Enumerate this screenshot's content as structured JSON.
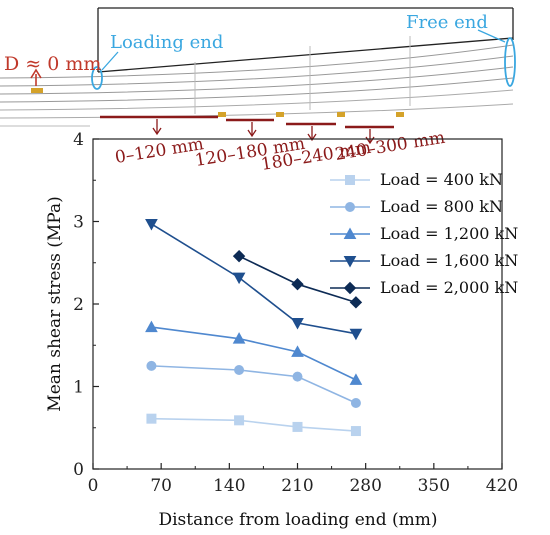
{
  "diagram": {
    "loading_end_label": "Loading end",
    "free_end_label": "Free end",
    "d_label": "D ≈ 0 mm",
    "segments": [
      "0–120 mm",
      "120–180 mm",
      "180–240 mm",
      "240–300 mm"
    ]
  },
  "chart_data": {
    "type": "line",
    "title": "",
    "xlabel": "Distance from loading end (mm)",
    "ylabel": "Mean shear stress (MPa)",
    "xlim": [
      0,
      420
    ],
    "ylim": [
      0,
      4
    ],
    "xticks": [
      "0",
      "70",
      "140",
      "210",
      "280",
      "350",
      "420"
    ],
    "yticks": [
      "0",
      "1",
      "2",
      "3",
      "4"
    ],
    "grid": false,
    "legend_position": "right",
    "series": [
      {
        "name": "Load = 400 kN",
        "marker": "square",
        "color": "#b9d2ee",
        "x": [
          60,
          150,
          210,
          270
        ],
        "y": [
          0.61,
          0.59,
          0.51,
          0.46
        ]
      },
      {
        "name": "Load = 800 kN",
        "marker": "circle",
        "color": "#8fb5e3",
        "x": [
          60,
          150,
          210,
          270
        ],
        "y": [
          1.25,
          1.2,
          1.12,
          0.8
        ]
      },
      {
        "name": "Load = 1,200 kN",
        "marker": "triangle-up",
        "color": "#4f88cf",
        "x": [
          60,
          150,
          210,
          270
        ],
        "y": [
          1.72,
          1.58,
          1.42,
          1.08
        ]
      },
      {
        "name": "Load = 1,600 kN",
        "marker": "triangle-down",
        "color": "#1f4f8e",
        "x": [
          60,
          150,
          210,
          270
        ],
        "y": [
          2.97,
          2.32,
          1.77,
          1.64
        ]
      },
      {
        "name": "Load = 2,000 kN",
        "marker": "diamond",
        "color": "#0d2b55",
        "x": [
          150,
          210,
          270
        ],
        "y": [
          2.58,
          2.24,
          2.02
        ]
      }
    ]
  }
}
